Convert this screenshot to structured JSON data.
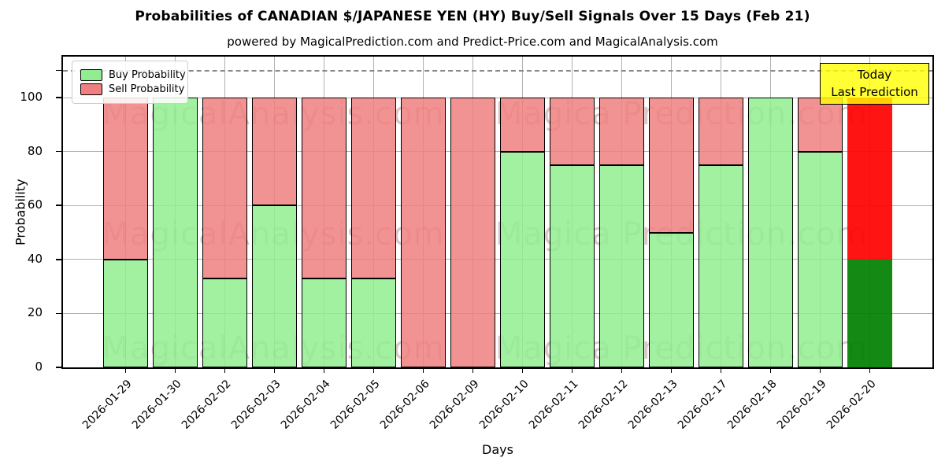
{
  "title": "Probabilities of CANADIAN $/JAPANESE YEN (HY) Buy/Sell Signals Over 15 Days (Feb 21)",
  "subtitle": "powered by MagicalPrediction.com and Predict-Price.com and MagicalAnalysis.com",
  "watermarks": [
    "MagicalAnalysis.com",
    "Magica Prediction.com"
  ],
  "annotation": {
    "line1": "Today",
    "line2": "Last Prediction"
  },
  "legend": [
    {
      "label": "Buy Probability",
      "color": "#90ee90"
    },
    {
      "label": "Sell Probability",
      "color": "#f08080"
    }
  ],
  "chart_data": {
    "type": "bar",
    "stacked": true,
    "title": "Probabilities of CANADIAN $/JAPANESE YEN (HY) Buy/Sell Signals Over 15 Days (Feb 21)",
    "xlabel": "Days",
    "ylabel": "Probability",
    "categories": [
      "2026-01-29",
      "2026-01-30",
      "2026-02-02",
      "2026-02-03",
      "2026-02-04",
      "2026-02-05",
      "2026-02-06",
      "2026-02-09",
      "2026-02-10",
      "2026-02-11",
      "2026-02-12",
      "2026-02-13",
      "2026-02-17",
      "2026-02-18",
      "2026-02-19",
      "2026-02-20"
    ],
    "series": [
      {
        "name": "Buy Probability",
        "color": "#90ee90",
        "values": [
          40,
          100,
          33,
          60,
          33,
          33,
          0,
          0,
          80,
          75,
          75,
          50,
          75,
          100,
          80,
          40
        ]
      },
      {
        "name": "Sell Probability",
        "color": "#f08080",
        "values": [
          60,
          0,
          67,
          40,
          67,
          67,
          100,
          100,
          20,
          25,
          25,
          50,
          25,
          0,
          20,
          60
        ]
      }
    ],
    "last_bar": {
      "buy_color": "#008000",
      "sell_color": "#ff0000",
      "border": false
    },
    "yticks": [
      0,
      20,
      40,
      60,
      80,
      100
    ],
    "ylim": [
      0,
      115
    ],
    "dashed_line_y": 110,
    "grid": true,
    "legend_position": "upper left",
    "grid_color": "#b0b0b0"
  }
}
